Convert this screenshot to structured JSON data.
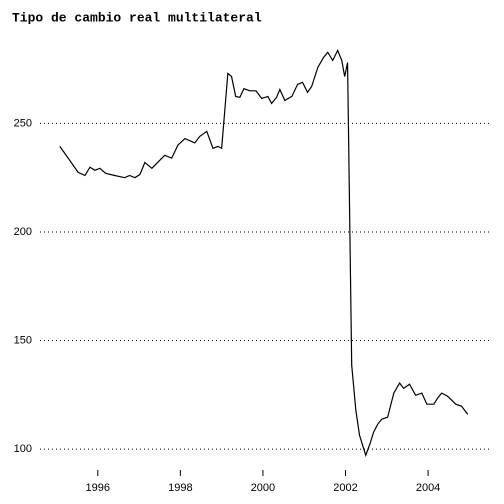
{
  "chart_data": {
    "type": "line",
    "title": "Tipo de cambio real multilateral",
    "x": [
      1995.08,
      1995.32,
      1995.52,
      1995.69,
      1995.81,
      1995.93,
      1996.05,
      1996.19,
      1996.41,
      1996.65,
      1996.77,
      1996.9,
      1997.02,
      1997.14,
      1997.31,
      1997.45,
      1997.62,
      1997.79,
      1997.94,
      1998.11,
      1998.35,
      1998.47,
      1998.64,
      1998.79,
      1998.91,
      1999.0,
      1999.15,
      1999.24,
      1999.34,
      1999.44,
      1999.54,
      1999.68,
      1999.83,
      1999.97,
      2000.12,
      2000.21,
      2000.33,
      2000.41,
      2000.53,
      2000.7,
      2000.84,
      2000.96,
      2001.08,
      2001.18,
      2001.33,
      2001.47,
      2001.57,
      2001.69,
      2001.81,
      2001.91,
      2001.98,
      2002.05,
      2002.15,
      2002.25,
      2002.34,
      2002.49,
      2002.59,
      2002.68,
      2002.78,
      2002.88,
      2003.02,
      2003.17,
      2003.31,
      2003.41,
      2003.55,
      2003.7,
      2003.85,
      2003.97,
      2004.14,
      2004.23,
      2004.33,
      2004.47,
      2004.57,
      2004.67,
      2004.81,
      2004.96
    ],
    "series": [
      {
        "name": "Tipo de cambio real multilateral",
        "color": "#000000",
        "values": [
          239.4,
          233,
          227.5,
          226,
          229.8,
          228.4,
          229.3,
          227,
          226,
          225,
          226,
          225,
          226.5,
          232,
          229.3,
          232,
          235.3,
          234,
          240,
          243,
          241,
          244,
          246.3,
          238.5,
          239.4,
          238.5,
          273,
          271.6,
          262.4,
          262,
          266,
          265,
          265,
          261.5,
          262.4,
          259.2,
          262,
          265.6,
          260.6,
          262.4,
          268,
          268.9,
          264.3,
          267,
          275.8,
          280.4,
          282.7,
          279,
          283.6,
          279,
          271.6,
          278,
          138.7,
          118,
          106.4,
          97.2,
          102.3,
          107.8,
          111.5,
          113.8,
          114.7,
          125.8,
          130.4,
          128,
          129.9,
          124.8,
          125.8,
          120.7,
          120.7,
          123.5,
          125.8,
          124.4,
          122.6,
          120.7,
          119.8,
          116
        ]
      }
    ],
    "xlim": [
      1994.6,
      2005.5
    ],
    "xticks": [
      1996,
      1998,
      2000,
      2002,
      2004
    ],
    "ylim": [
      95,
      293
    ],
    "yticks": [
      100,
      150,
      200,
      250
    ],
    "grid": true
  }
}
